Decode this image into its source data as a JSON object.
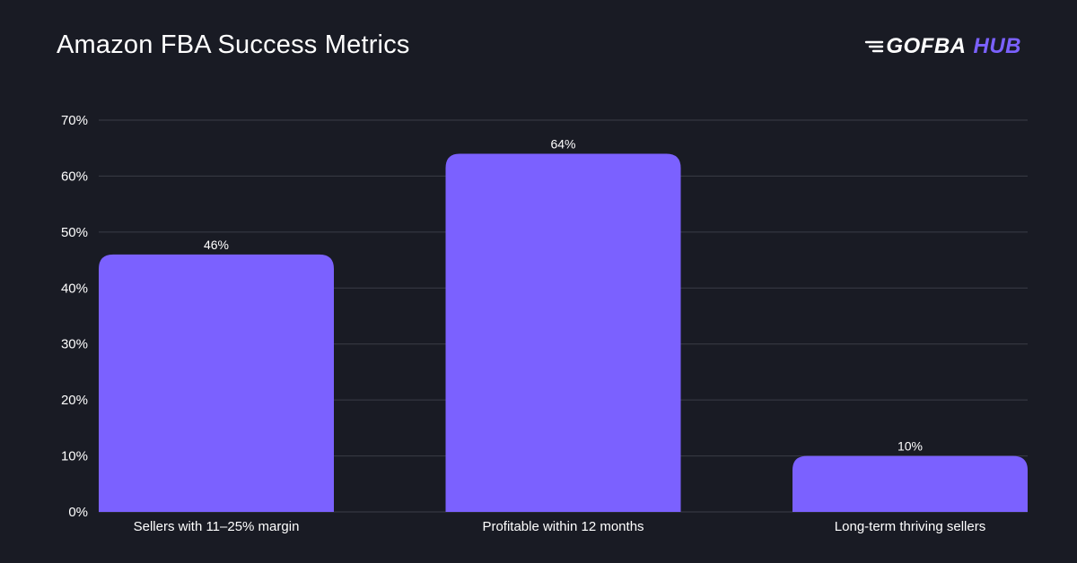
{
  "header": {
    "title": "Amazon FBA Success Metrics",
    "brand_name": "GOFBA",
    "brand_suffix": "HUB",
    "brand_icon": "speed-lines-icon"
  },
  "colors": {
    "background": "#191b24",
    "bar": "#7b61ff",
    "grid": "#3a3d47",
    "brand_accent": "#7b61ff"
  },
  "chart_data": {
    "type": "bar",
    "title": "Amazon FBA Success Metrics",
    "xlabel": "",
    "ylabel": "",
    "categories": [
      "Sellers with 11–25% margin",
      "Profitable within 12 months",
      "Long-term thriving sellers"
    ],
    "values": [
      46,
      64,
      10
    ],
    "value_labels": [
      "46%",
      "64%",
      "10%"
    ],
    "ylim": [
      0,
      70
    ],
    "yticks": [
      0,
      10,
      20,
      30,
      40,
      50,
      60,
      70
    ],
    "ytick_labels": [
      "0%",
      "10%",
      "20%",
      "30%",
      "40%",
      "50%",
      "60%",
      "70%"
    ],
    "grid": true,
    "legend": "none"
  }
}
